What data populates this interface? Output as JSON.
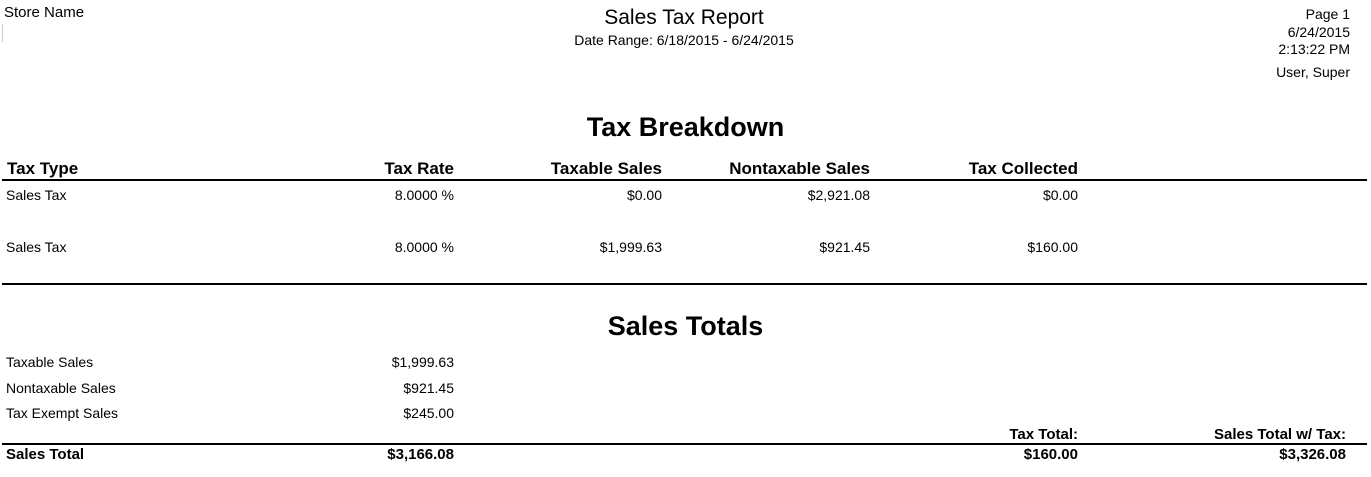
{
  "header": {
    "store_name": "Store Name",
    "title": "Sales Tax Report",
    "date_range": "Date Range: 6/18/2015 - 6/24/2015",
    "page": "Page 1",
    "date": "6/24/2015",
    "time": "2:13:22 PM",
    "user": "User, Super"
  },
  "tax_breakdown": {
    "heading": "Tax Breakdown",
    "columns": [
      "Tax Type",
      "Tax Rate",
      "Taxable Sales",
      "Nontaxable Sales",
      "Tax Collected"
    ],
    "rows": [
      {
        "tax_type": "Sales Tax",
        "tax_rate": "8.0000 %",
        "taxable_sales": "$0.00",
        "nontaxable_sales": "$2,921.08",
        "tax_collected": "$0.00"
      },
      {
        "tax_type": "Sales Tax",
        "tax_rate": "8.0000 %",
        "taxable_sales": "$1,999.63",
        "nontaxable_sales": "$921.45",
        "tax_collected": "$160.00"
      }
    ]
  },
  "sales_totals": {
    "heading": "Sales Totals",
    "items": [
      {
        "label": "Taxable Sales",
        "value": "$1,999.63"
      },
      {
        "label": "Nontaxable Sales",
        "value": "$921.45"
      },
      {
        "label": "Tax Exempt Sales",
        "value": "$245.00"
      }
    ],
    "tax_total_label": "Tax Total:",
    "sales_total_with_tax_label": "Sales Total w/ Tax:",
    "sales_total_label": "Sales Total",
    "sales_total_value": "$3,166.08",
    "tax_total_value": "$160.00",
    "sales_total_with_tax_value": "$3,326.08"
  }
}
